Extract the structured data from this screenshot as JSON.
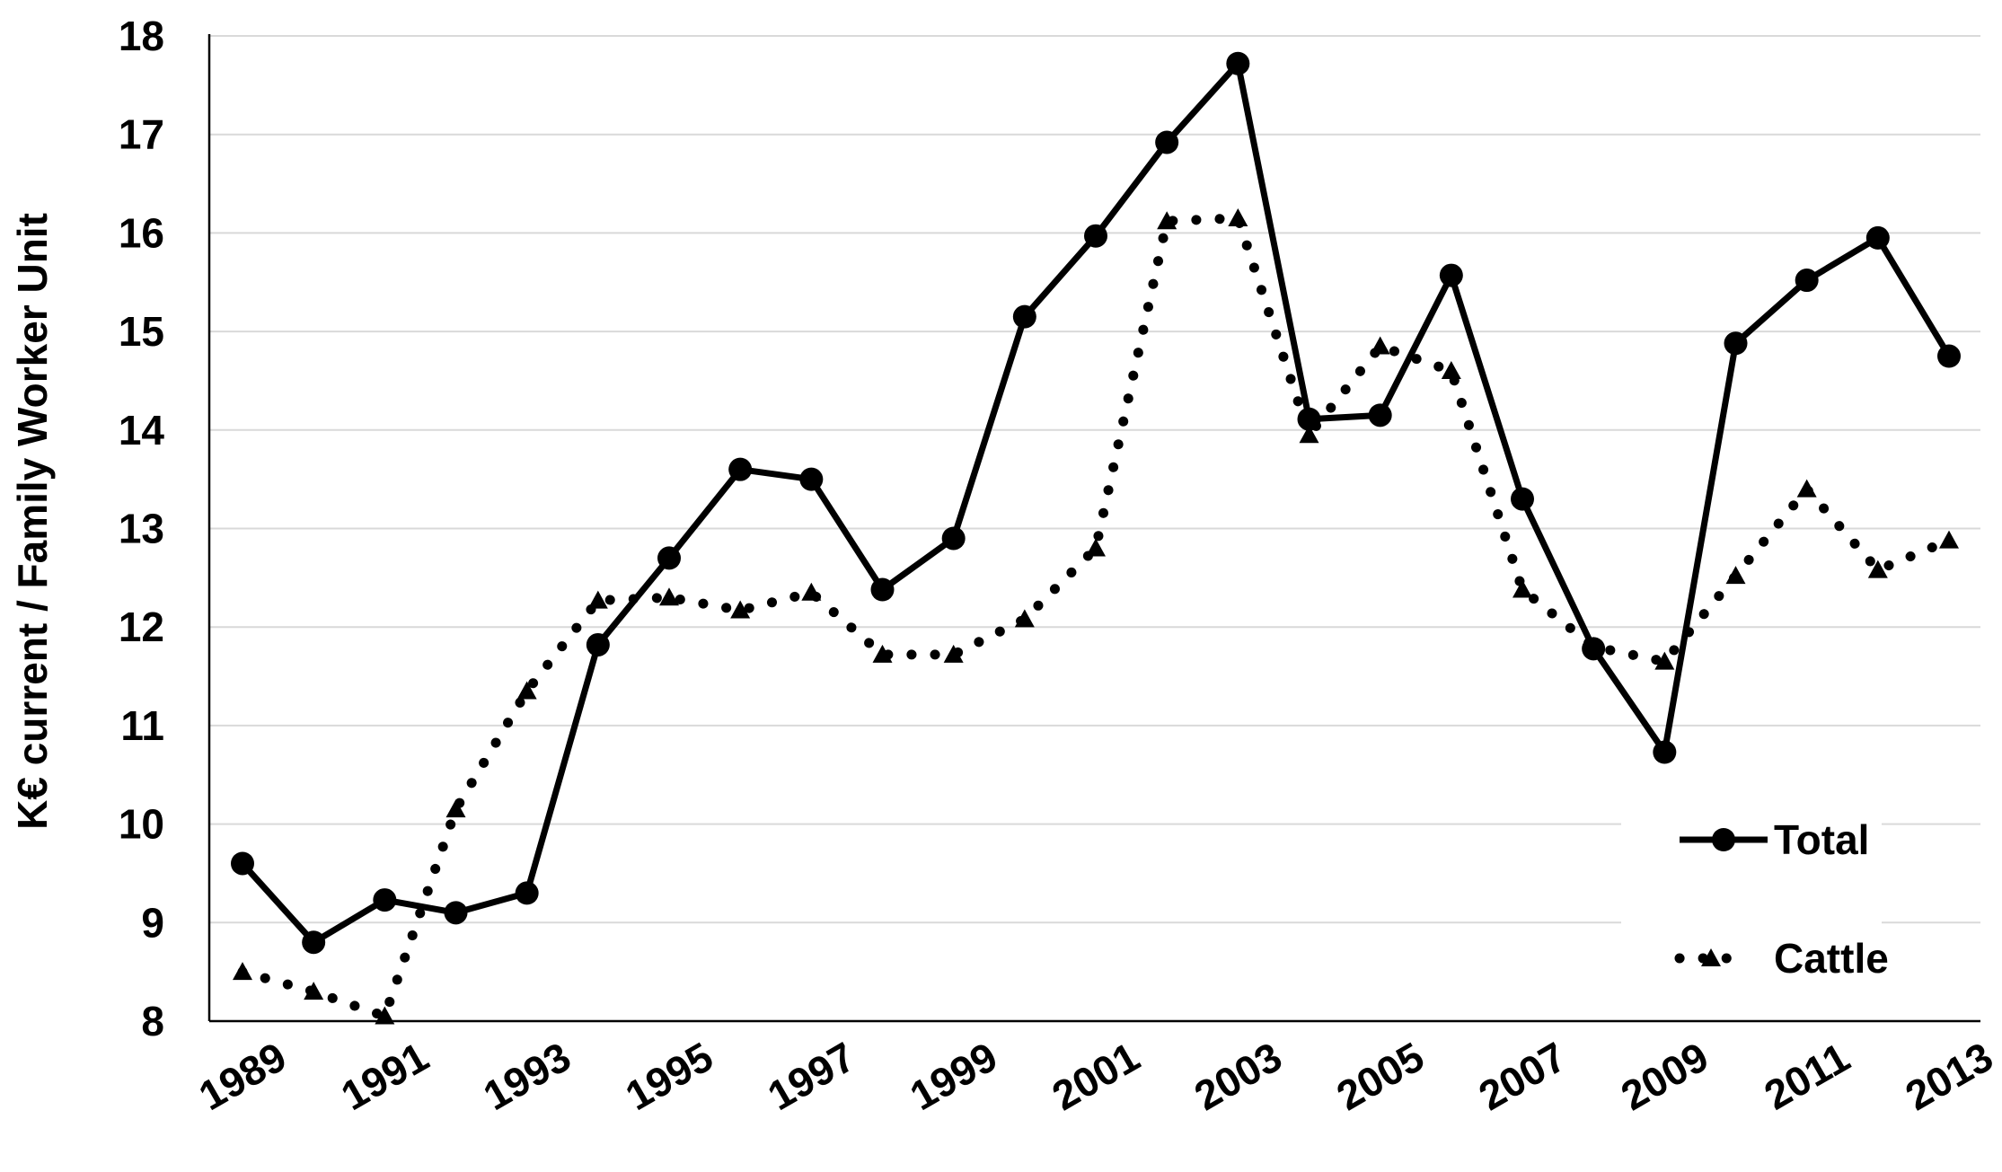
{
  "chart_data": {
    "type": "line",
    "title": "",
    "xlabel": "",
    "ylabel": "K€ current / Family Worker Unit",
    "ylim": [
      8,
      18
    ],
    "yticks": [
      "8",
      "9",
      "10",
      "11",
      "12",
      "13",
      "14",
      "15",
      "16",
      "17",
      "18"
    ],
    "xtick_labels": [
      "1989",
      "1991",
      "1993",
      "1995",
      "1997",
      "1999",
      "2001",
      "2003",
      "2005",
      "2007",
      "2009",
      "2011",
      "2013"
    ],
    "x": [
      1989,
      1990,
      1991,
      1992,
      1993,
      1994,
      1995,
      1996,
      1997,
      1998,
      1999,
      2000,
      2001,
      2002,
      2003,
      2004,
      2005,
      2006,
      2007,
      2008,
      2009,
      2010,
      2011,
      2012,
      2013
    ],
    "grid": "horizontal",
    "legend_position": "bottom-right",
    "series": [
      {
        "name": "Total",
        "style": "solid-with-circle-markers",
        "color": "#000000",
        "values": [
          9.6,
          8.8,
          9.23,
          9.1,
          9.3,
          11.82,
          12.7,
          13.6,
          13.5,
          12.38,
          12.9,
          15.15,
          15.97,
          16.92,
          17.72,
          14.11,
          14.15,
          15.57,
          13.3,
          11.78,
          10.73,
          14.88,
          15.52,
          15.95,
          14.75
        ]
      },
      {
        "name": "Cattle",
        "style": "dotted-with-triangle-markers",
        "color": "#000000",
        "values": [
          8.5,
          8.3,
          8.05,
          10.15,
          11.35,
          12.27,
          12.3,
          12.17,
          12.35,
          11.72,
          11.72,
          12.08,
          12.8,
          16.12,
          16.15,
          13.95,
          14.85,
          14.6,
          12.38,
          11.8,
          11.65,
          12.52,
          13.4,
          12.58,
          12.88
        ]
      }
    ]
  }
}
